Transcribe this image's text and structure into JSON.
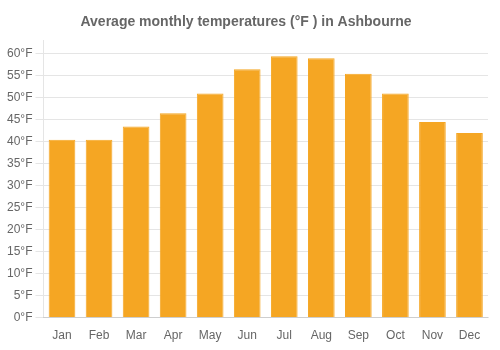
{
  "chart_data": {
    "type": "bar",
    "title": "Average monthly temperatures (°F ) in Ashbourne",
    "categories": [
      "Jan",
      "Feb",
      "Mar",
      "Apr",
      "May",
      "Jun",
      "Jul",
      "Aug",
      "Sep",
      "Oct",
      "Nov",
      "Dec"
    ],
    "values": [
      40.5,
      40.5,
      43.5,
      46.5,
      51.0,
      56.5,
      59.5,
      59.0,
      55.5,
      51.0,
      44.5,
      42.0
    ],
    "color": "#F5A623",
    "ylim": [
      0,
      63
    ],
    "yticks": [
      {
        "value": 0,
        "label": "0°F"
      },
      {
        "value": 5,
        "label": "5°F"
      },
      {
        "value": 10,
        "label": "10°F"
      },
      {
        "value": 15,
        "label": "15°F"
      },
      {
        "value": 20,
        "label": "20°F"
      },
      {
        "value": 25,
        "label": "25°F"
      },
      {
        "value": 30,
        "label": "30°F"
      },
      {
        "value": 35,
        "label": "35°F"
      },
      {
        "value": 40,
        "label": "40°F"
      },
      {
        "value": 45,
        "label": "45°F"
      },
      {
        "value": 50,
        "label": "50°F"
      },
      {
        "value": 55,
        "label": "55°F"
      },
      {
        "value": 60,
        "label": "60°F"
      }
    ],
    "grid": true
  }
}
